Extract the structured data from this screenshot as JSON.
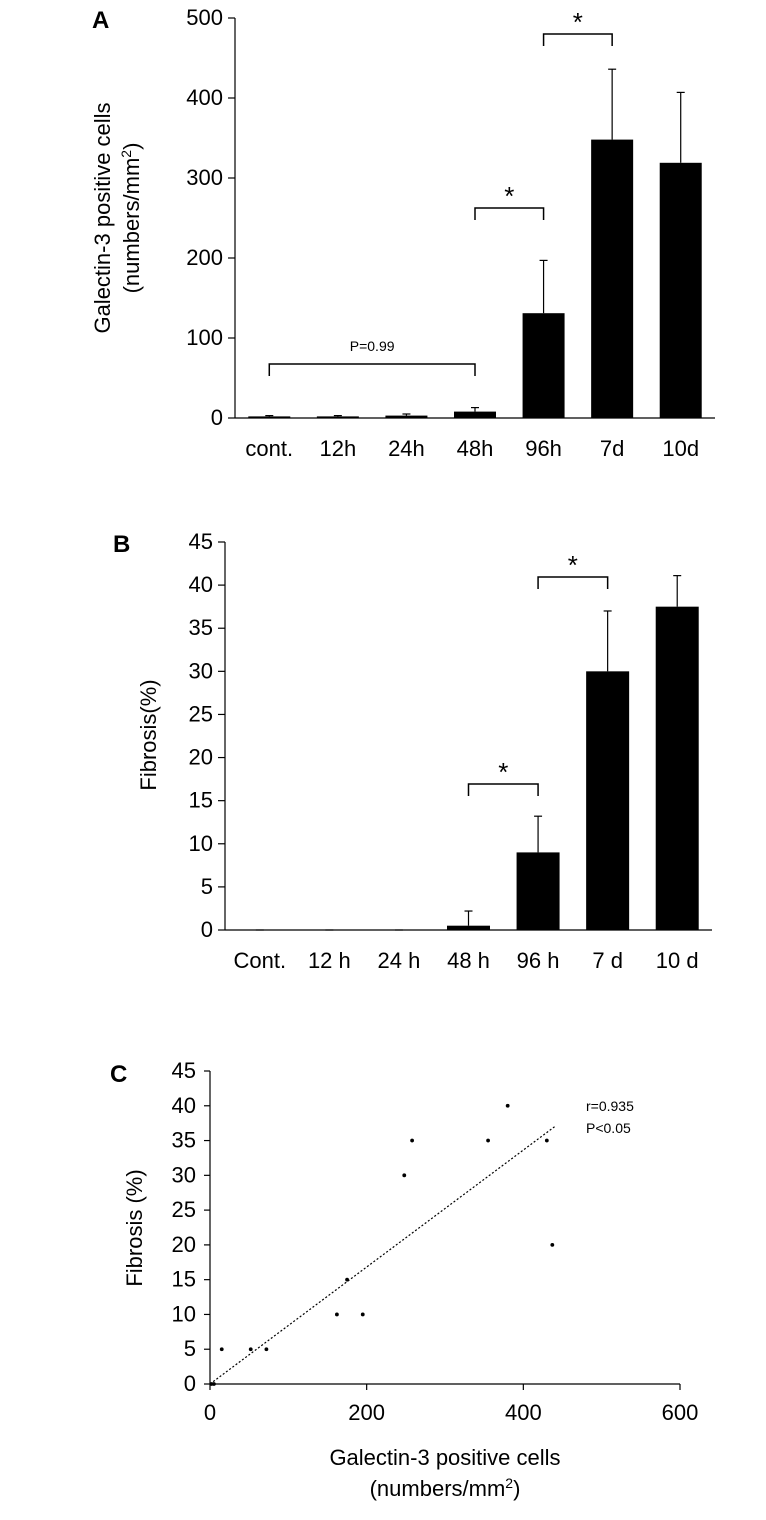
{
  "chart_data": [
    {
      "type": "bar",
      "panel_label": "A",
      "categories": [
        "cont.",
        "12h",
        "24h",
        "48h",
        "96h",
        "7d",
        "10d"
      ],
      "values": [
        2,
        2,
        3,
        8,
        131,
        348,
        319
      ],
      "errors": [
        1,
        1,
        2,
        5,
        66,
        88,
        88
      ],
      "ylabel_line1": "Galectin-3 positive cells",
      "ylabel_line2": "(numbers/mm",
      "ylabel_sup": "2",
      "ylabel_close": ")",
      "ylim": [
        0,
        500
      ],
      "yticks": [
        0,
        100,
        200,
        300,
        400,
        500
      ],
      "ytick_labels": [
        "0",
        "100",
        "200",
        "300",
        "400",
        "500"
      ],
      "brackets": [
        {
          "from": "cont.",
          "to": "48h",
          "label": "P=0.99"
        },
        {
          "from": "48h",
          "to": "96h",
          "label": "*"
        },
        {
          "from": "96h",
          "to": "7d",
          "label": "*"
        }
      ]
    },
    {
      "type": "bar",
      "panel_label": "B",
      "categories": [
        "Cont.",
        "12 h",
        "24 h",
        "48 h",
        "96 h",
        "7 d",
        "10 d"
      ],
      "values": [
        0,
        0,
        0,
        0.5,
        9,
        30,
        37.5
      ],
      "errors": [
        0,
        0,
        0,
        1.7,
        4.2,
        7,
        3.6
      ],
      "ylabel": "Fibrosis(%)",
      "ylim": [
        0,
        45
      ],
      "yticks": [
        0,
        5,
        10,
        15,
        20,
        25,
        30,
        35,
        40,
        45
      ],
      "ytick_labels": [
        "0",
        "5",
        "10",
        "15",
        "20",
        "25",
        "30",
        "35",
        "40",
        "45"
      ],
      "brackets": [
        {
          "from": "48 h",
          "to": "96 h",
          "label": "*"
        },
        {
          "from": "96 h",
          "to": "7 d",
          "label": "*"
        }
      ]
    },
    {
      "type": "scatter",
      "panel_label": "C",
      "points": [
        {
          "x": 2,
          "y": 0
        },
        {
          "x": 5,
          "y": 0
        },
        {
          "x": 15,
          "y": 5
        },
        {
          "x": 52,
          "y": 5
        },
        {
          "x": 72,
          "y": 5
        },
        {
          "x": 162,
          "y": 10
        },
        {
          "x": 175,
          "y": 15
        },
        {
          "x": 195,
          "y": 10
        },
        {
          "x": 248,
          "y": 30
        },
        {
          "x": 258,
          "y": 35
        },
        {
          "x": 355,
          "y": 35
        },
        {
          "x": 380,
          "y": 40
        },
        {
          "x": 430,
          "y": 35
        },
        {
          "x": 437,
          "y": 20
        }
      ],
      "trendline": {
        "x1": 0,
        "y1": 0,
        "x2": 440,
        "y2": 37
      },
      "ylabel": "Fibrosis (%)",
      "xlabel_line1": "Galectin-3 positive cells",
      "xlabel_line2": "(numbers/mm",
      "xlabel_sup": "2",
      "xlabel_close": ")",
      "xlim": [
        0,
        600
      ],
      "ylim": [
        0,
        45
      ],
      "xticks": [
        0,
        200,
        400,
        600
      ],
      "xtick_labels": [
        "0",
        "200",
        "400",
        "600"
      ],
      "yticks": [
        0,
        5,
        10,
        15,
        20,
        25,
        30,
        35,
        40,
        45
      ],
      "ytick_labels": [
        "0",
        "5",
        "10",
        "15",
        "20",
        "25",
        "30",
        "35",
        "40",
        "45"
      ],
      "annotation_line1": "r=0.935",
      "annotation_line2": "P<0.05"
    }
  ]
}
